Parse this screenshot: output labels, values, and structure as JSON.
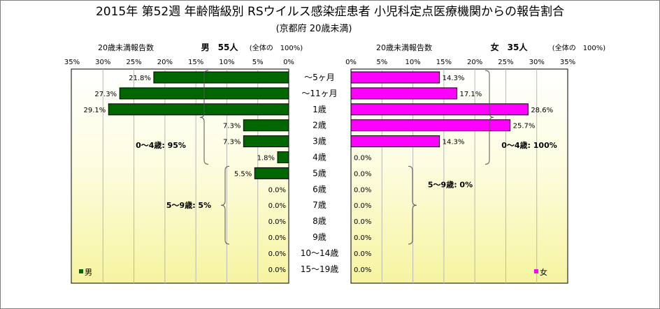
{
  "chart_data": {
    "type": "bar",
    "title": "2015年 第52週 年齢階級別 RSウイルス感染症患者 小児科定点医療機関からの報告割合",
    "subtitle": "(京都府 20歳未満)",
    "categories": [
      "～5ヶ月",
      "～11ヶ月",
      "1歳",
      "2歳",
      "3歳",
      "4歳",
      "5歳",
      "6歳",
      "7歳",
      "8歳",
      "9歳",
      "10～14歳",
      "15～19歳"
    ],
    "xlim": [
      0,
      35
    ],
    "ticks": [
      "0%",
      "5%",
      "10%",
      "15%",
      "20%",
      "25%",
      "30%",
      "35%"
    ],
    "grid": true,
    "series": [
      {
        "name": "男",
        "header_label": "20歳未満報告数",
        "header_total": "男　55人",
        "header_note": "(全体の　100%)",
        "values": [
          21.8,
          27.3,
          29.1,
          7.3,
          7.3,
          1.8,
          5.5,
          0.0,
          0.0,
          0.0,
          0.0,
          0.0,
          0.0
        ],
        "labels": [
          "21.8%",
          "27.3%",
          "29.1%",
          "7.3%",
          "7.3%",
          "1.8%",
          "5.5%",
          "0.0%",
          "0.0%",
          "0.0%",
          "0.0%",
          "0.0%",
          "0.0%"
        ],
        "color": "#006600",
        "brackets": [
          {
            "text": "0～4歳: 95%",
            "from": 0,
            "to": 5
          },
          {
            "text": "5～9歳: 5%",
            "from": 6,
            "to": 10
          }
        ]
      },
      {
        "name": "女",
        "header_label": "20歳未満報告数",
        "header_total": "女　35人",
        "header_note": "(全体の　100%)",
        "values": [
          14.3,
          17.1,
          28.6,
          25.7,
          14.3,
          0.0,
          0.0,
          0.0,
          0.0,
          0.0,
          0.0,
          0.0,
          0.0
        ],
        "labels": [
          "14.3%",
          "17.1%",
          "28.6%",
          "25.7%",
          "14.3%",
          "0.0%",
          "0.0%",
          "0.0%",
          "0.0%",
          "0.0%",
          "0.0%",
          "0.0%",
          "0.0%"
        ],
        "color": "#ff00ff",
        "brackets": [
          {
            "text": "0～4歳: 100%",
            "from": 0,
            "to": 5
          },
          {
            "text": "5～9歳: 0%",
            "from": 6,
            "to": 10
          }
        ]
      }
    ]
  }
}
